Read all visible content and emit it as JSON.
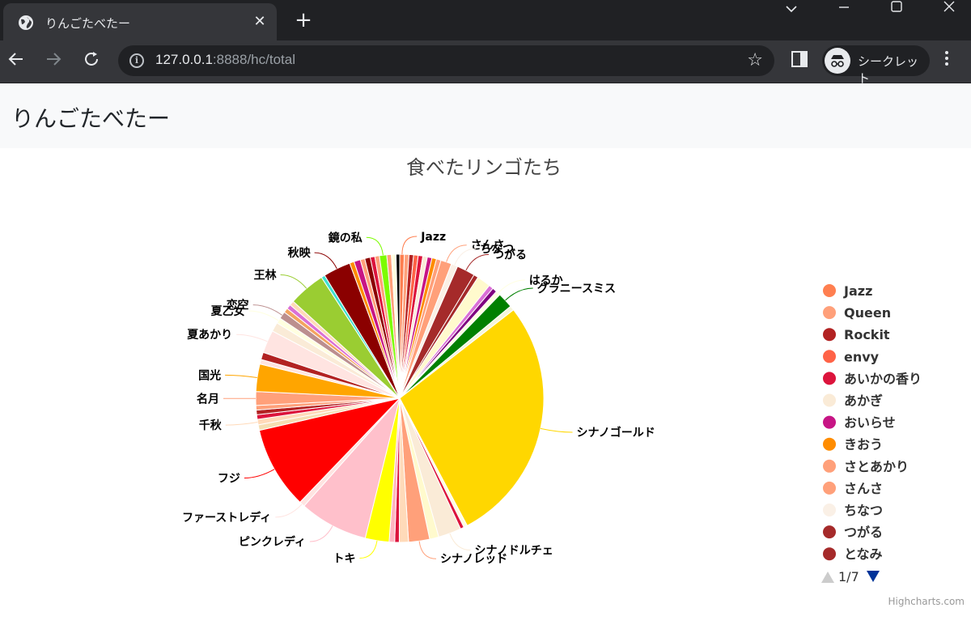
{
  "browser": {
    "tab_title": "りんごたべたー",
    "url_host": "127.0.0.1",
    "url_rest": ":8888/hc/total",
    "profile_label": "シークレット",
    "new_tab_label": "+",
    "close_tab_label": "✕"
  },
  "page": {
    "brand": "りんごたべたー"
  },
  "chart_data": {
    "type": "pie",
    "title": "食べたリンゴたち",
    "credits": "Highcharts.com",
    "legend": {
      "position": "right",
      "page_indicator": "1/7",
      "items": [
        {
          "name": "Jazz",
          "color": "#FF7F50"
        },
        {
          "name": "Queen",
          "color": "#FFA07A"
        },
        {
          "name": "Rockit",
          "color": "#B22222"
        },
        {
          "name": "envy",
          "color": "#FF6347"
        },
        {
          "name": "あいかの香り",
          "color": "#DC143C"
        },
        {
          "name": "あかぎ",
          "color": "#FAEBD7"
        },
        {
          "name": "おいらせ",
          "color": "#C71585"
        },
        {
          "name": "きおう",
          "color": "#FF8C00"
        },
        {
          "name": "さとあかり",
          "color": "#FFA07A"
        },
        {
          "name": "さんさ",
          "color": "#FFA07A"
        },
        {
          "name": "ちなつ",
          "color": "#FAF0E6"
        },
        {
          "name": "つがる",
          "color": "#A52A2A"
        },
        {
          "name": "となみ",
          "color": "#A52A2A"
        }
      ]
    },
    "slices": [
      {
        "name": "Jazz",
        "value": 0.5,
        "color": "#FF7F50",
        "label": true
      },
      {
        "name": "Queen",
        "value": 0.5,
        "color": "#FFA07A",
        "label": false
      },
      {
        "name": "Rockit",
        "value": 0.5,
        "color": "#B22222",
        "label": false
      },
      {
        "name": "envy",
        "value": 0.5,
        "color": "#FF6347",
        "label": false
      },
      {
        "name": "あいかの香り",
        "value": 0.5,
        "color": "#DC143C",
        "label": false
      },
      {
        "name": "あかぎ",
        "value": 0.5,
        "color": "#FAEBD7",
        "label": false
      },
      {
        "name": "おいらせ",
        "value": 0.5,
        "color": "#C71585",
        "label": false
      },
      {
        "name": "きおう",
        "value": 0.5,
        "color": "#FF8C00",
        "label": false
      },
      {
        "name": "さとあかり",
        "value": 0.5,
        "color": "#FFA07A",
        "label": false
      },
      {
        "name": "さんさ",
        "value": 1.2,
        "color": "#FFA07A",
        "label": true
      },
      {
        "name": "ちなつ",
        "value": 0.7,
        "color": "#FAF0E6",
        "label": true
      },
      {
        "name": "つがる",
        "value": 2.0,
        "color": "#A52A2A",
        "label": true
      },
      {
        "name": "となみ",
        "value": 0.5,
        "color": "#A52A2A",
        "label": false
      },
      {
        "name": "",
        "value": 1.5,
        "color": "#FFFACD",
        "label": false
      },
      {
        "name": "",
        "value": 0.5,
        "color": "#DA70D6",
        "label": false
      },
      {
        "name": "",
        "value": 0.5,
        "color": "#800080",
        "label": false
      },
      {
        "name": "はるか",
        "value": 0.5,
        "color": "#FFFFE0",
        "label": true
      },
      {
        "name": "グラニースミス",
        "value": 1.7,
        "color": "#008000",
        "label": true
      },
      {
        "name": "",
        "value": 0.5,
        "color": "#F5F5DC",
        "label": false
      },
      {
        "name": "シナノゴールド",
        "value": 27.0,
        "color": "#FFD700",
        "label": true
      },
      {
        "name": "",
        "value": 0.4,
        "color": "#FFFFE0",
        "label": false
      },
      {
        "name": "",
        "value": 0.4,
        "color": "#DC143C",
        "label": false
      },
      {
        "name": "シナノドルチェ",
        "value": 2.5,
        "color": "#FAEBD7",
        "label": true
      },
      {
        "name": "",
        "value": 1.0,
        "color": "#FFFACD",
        "label": false
      },
      {
        "name": "シナノレッド",
        "value": 2.3,
        "color": "#FFA07A",
        "label": true
      },
      {
        "name": "",
        "value": 1.0,
        "color": "#FFDAB9",
        "label": false
      },
      {
        "name": "",
        "value": 0.5,
        "color": "#DC143C",
        "label": false
      },
      {
        "name": "",
        "value": 0.6,
        "color": "#FFB6C1",
        "label": false
      },
      {
        "name": "トキ",
        "value": 2.6,
        "color": "#FFFF00",
        "label": true
      },
      {
        "name": "ピンクレディ",
        "value": 7.5,
        "color": "#FFC0CB",
        "label": true
      },
      {
        "name": "ファーストレディ",
        "value": 0.6,
        "color": "#FFE4E1",
        "label": true
      },
      {
        "name": "フジ",
        "value": 9.0,
        "color": "#FF0000",
        "label": true
      },
      {
        "name": "",
        "value": 0.6,
        "color": "#F5DEB3",
        "label": false
      },
      {
        "name": "千秋",
        "value": 0.6,
        "color": "#FFDAB9",
        "label": true
      },
      {
        "name": "",
        "value": 0.5,
        "color": "#DC143C",
        "label": false
      },
      {
        "name": "",
        "value": 0.5,
        "color": "#B22222",
        "label": false
      },
      {
        "name": "",
        "value": 0.5,
        "color": "#FFA07A",
        "label": false
      },
      {
        "name": "名月",
        "value": 1.5,
        "color": "#FFA07A",
        "label": true
      },
      {
        "name": "国光",
        "value": 3.0,
        "color": "#FFA500",
        "label": true
      },
      {
        "name": "",
        "value": 0.5,
        "color": "#FFE4E1",
        "label": false
      },
      {
        "name": "",
        "value": 0.8,
        "color": "#B22222",
        "label": false
      },
      {
        "name": "夏あかり",
        "value": 2.5,
        "color": "#FFE4E1",
        "label": true
      },
      {
        "name": "",
        "value": 1.0,
        "color": "#FAEBD7",
        "label": false
      },
      {
        "name": "夏乙女",
        "value": 0.6,
        "color": "#FFFFE0",
        "label": true
      },
      {
        "name": "恋空",
        "value": 0.8,
        "color": "#BC8F8F",
        "label": true
      },
      {
        "name": "",
        "value": 0.5,
        "color": "#F4A460",
        "label": false
      },
      {
        "name": "",
        "value": 0.5,
        "color": "#DA70D6",
        "label": false
      },
      {
        "name": "",
        "value": 0.5,
        "color": "#FFDAB9",
        "label": false
      },
      {
        "name": "王林",
        "value": 4.0,
        "color": "#9ACD32",
        "label": true
      },
      {
        "name": "",
        "value": 0.4,
        "color": "#40E0D0",
        "label": false
      },
      {
        "name": "秋映",
        "value": 3.0,
        "color": "#8B0000",
        "label": true
      },
      {
        "name": "",
        "value": 0.5,
        "color": "#FF8C00",
        "label": false
      },
      {
        "name": "",
        "value": 0.7,
        "color": "#C71585",
        "label": false
      },
      {
        "name": "",
        "value": 0.5,
        "color": "#FFA07A",
        "label": false
      },
      {
        "name": "",
        "value": 0.6,
        "color": "#8B0000",
        "label": false
      },
      {
        "name": "",
        "value": 0.5,
        "color": "#DC143C",
        "label": false
      },
      {
        "name": "",
        "value": 0.5,
        "color": "#FFA07A",
        "label": false
      },
      {
        "name": "鏡の私",
        "value": 0.8,
        "color": "#7CFC00",
        "label": true
      },
      {
        "name": "",
        "value": 0.5,
        "color": "#FFA07A",
        "label": false
      },
      {
        "name": "",
        "value": 0.5,
        "color": "#FFFFE0",
        "label": false
      },
      {
        "name": "",
        "value": 0.4,
        "color": "#000000",
        "label": false
      }
    ]
  }
}
